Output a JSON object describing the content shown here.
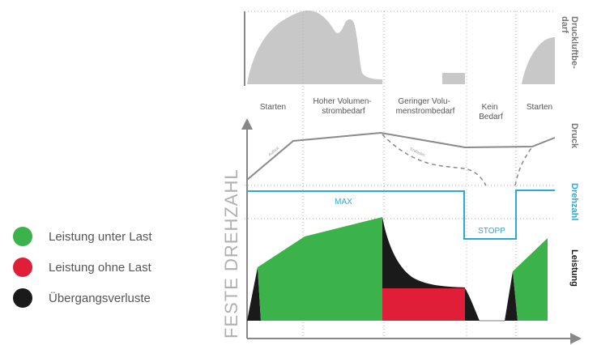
{
  "phases": [
    {
      "lines": [
        "Starten"
      ]
    },
    {
      "lines": [
        "Hoher Volumen-",
        "strombedarf"
      ]
    },
    {
      "lines": [
        "Geringer Volu-",
        "menstrombedarf"
      ]
    },
    {
      "lines": [
        "Kein",
        "Bedarf"
      ]
    },
    {
      "lines": [
        "Starten"
      ]
    }
  ],
  "right_labels": {
    "demand": [
      "Druckluftbe-",
      "darf"
    ],
    "pressure": "Druck",
    "speed": "Drehzahl",
    "power": "Leistung"
  },
  "y_axis_label": "FESTE DREHZAHL",
  "speed_labels": {
    "max": "MAX",
    "stop": "STOPP"
  },
  "tiny_labels": {
    "load": "Auflast",
    "idle": "Entlastet"
  },
  "legend": [
    {
      "label": "Leistung unter Last",
      "color": "#3bb34a",
      "icon": "green-circle-icon"
    },
    {
      "label": "Leistung ohne Last",
      "color": "#e01e37",
      "icon": "red-circle-icon"
    },
    {
      "label": "Übergangsverluste",
      "color": "#1a1a1a",
      "icon": "black-circle-icon"
    }
  ],
  "colors": {
    "demand": "#c8c8c8",
    "pressure": "#8a8a8a",
    "speed": "#29aad8",
    "under_load": "#3bb34a",
    "no_load": "#e01e37",
    "loss": "#1a1a1a"
  }
}
